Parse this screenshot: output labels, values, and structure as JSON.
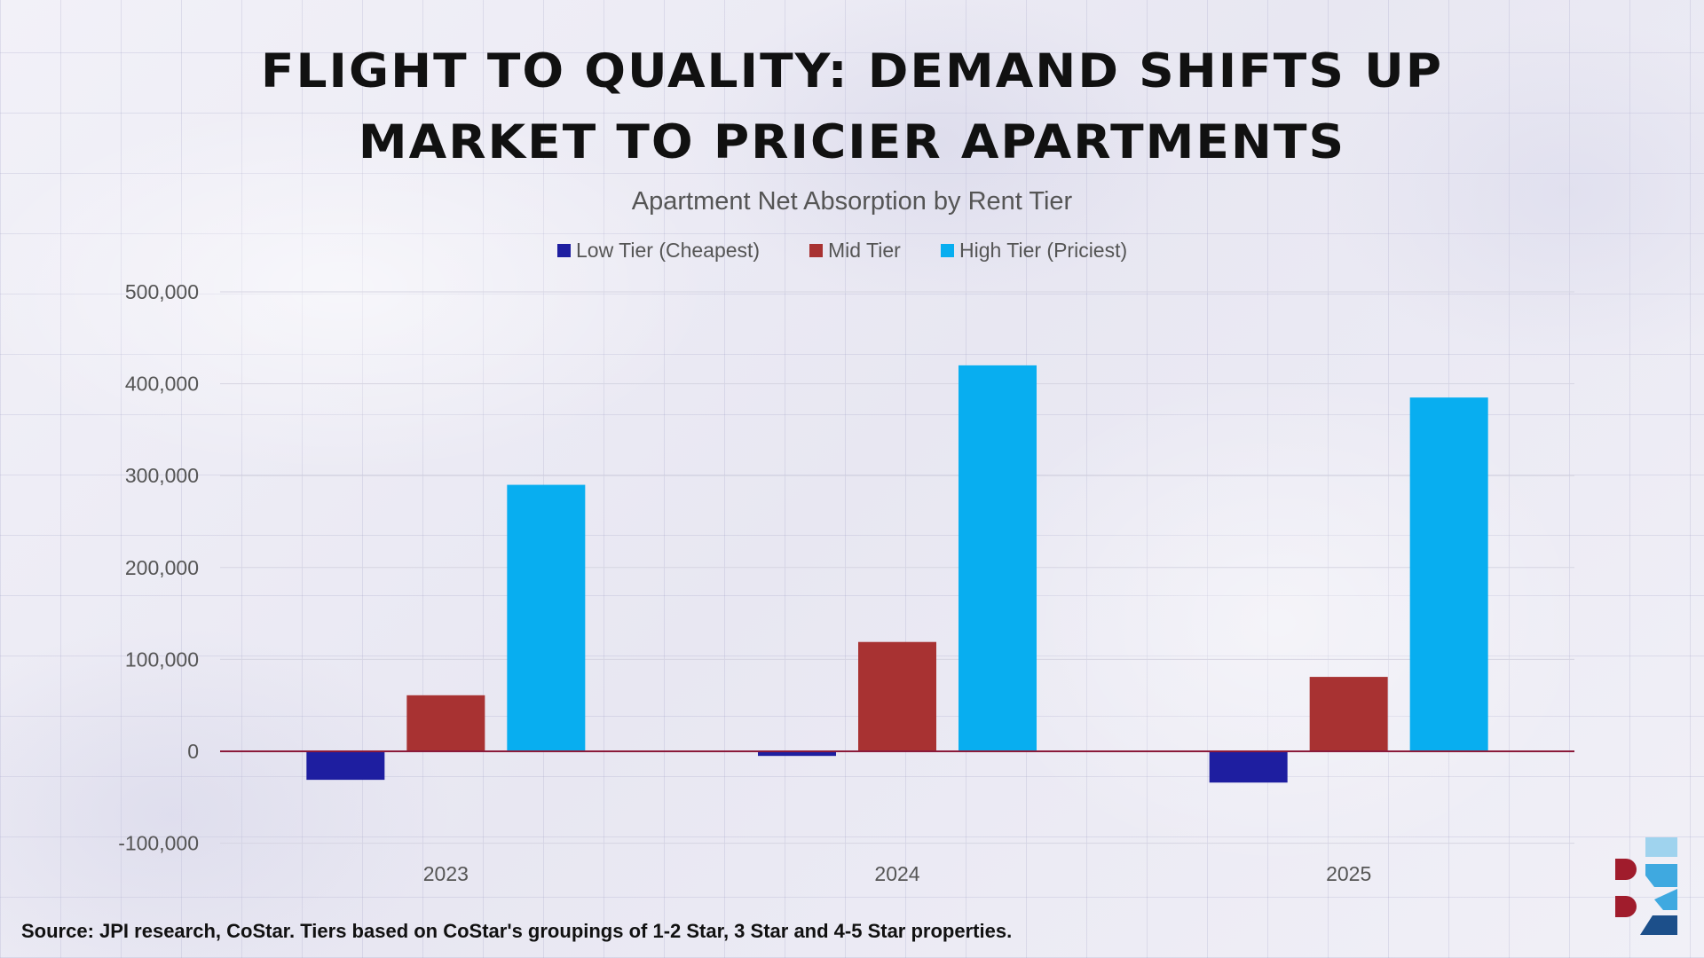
{
  "title": {
    "line1": "FLIGHT TO QUALITY: DEMAND SHIFTS UP",
    "line2": "MARKET TO PRICIER APARTMENTS"
  },
  "source": "Source: JPI research, CoStar. Tiers based on CoStar's groupings of 1-2 Star, 3 Star and 4-5 Star properties.",
  "chart_data": {
    "type": "bar",
    "title": "Apartment Net Absorption by Rent Tier",
    "categories": [
      "2023",
      "2024",
      "2025"
    ],
    "series": [
      {
        "name": "Low Tier (Cheapest)",
        "color": "#1e1ea0",
        "values": [
          -31000,
          -5000,
          -34000
        ]
      },
      {
        "name": "Mid Tier",
        "color": "#a83232",
        "values": [
          61000,
          119000,
          81000
        ]
      },
      {
        "name": "High Tier (Priciest)",
        "color": "#08aef0",
        "values": [
          290000,
          420000,
          385000
        ]
      }
    ],
    "ylim": [
      -100000,
      500000
    ],
    "yticks": [
      -100000,
      0,
      100000,
      200000,
      300000,
      400000,
      500000
    ],
    "ytick_labels": [
      "-100,000",
      "0",
      "100,000",
      "200,000",
      "300,000",
      "400,000",
      "500,000"
    ],
    "grid": true,
    "legend": "top",
    "zero_line_color": "#8b1a3a"
  },
  "logo": {
    "icon": "brand-b-logo",
    "colors": [
      "#a01c2c",
      "#3fa9e0",
      "#1c4f8a",
      "#9fd3ee"
    ]
  }
}
